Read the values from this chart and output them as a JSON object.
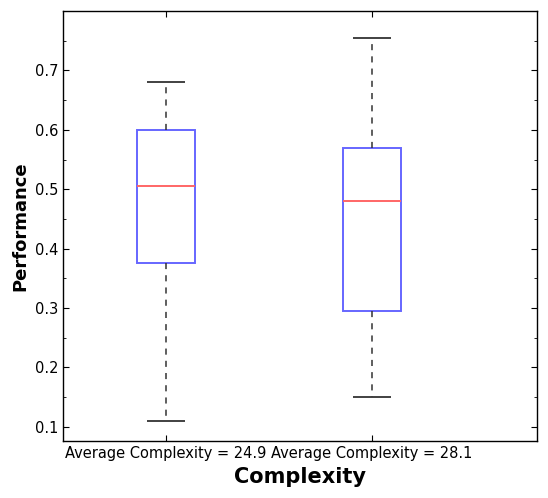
{
  "boxes": [
    {
      "label": "Average Complexity = 24.9",
      "whisker_low": 0.11,
      "q1": 0.375,
      "median": 0.505,
      "q3": 0.6,
      "whisker_high": 0.68
    },
    {
      "label": "Average Complexity = 28.1",
      "whisker_low": 0.15,
      "q1": 0.295,
      "median": 0.48,
      "q3": 0.57,
      "whisker_high": 0.755
    }
  ],
  "xlabel": "Complexity",
  "ylabel": "Performance",
  "ylim": [
    0.075,
    0.8
  ],
  "yticks": [
    0.1,
    0.2,
    0.3,
    0.4,
    0.5,
    0.6,
    0.7
  ],
  "box_color": "#6666FF",
  "median_color": "#FF6666",
  "whisker_color": "#333333",
  "cap_color": "#333333",
  "background_color": "#FFFFFF",
  "box_width": 0.28,
  "positions": [
    1,
    2
  ],
  "xlabel_fontsize": 15,
  "ylabel_fontsize": 13,
  "tick_fontsize": 10.5,
  "xlim": [
    0.5,
    2.8
  ]
}
